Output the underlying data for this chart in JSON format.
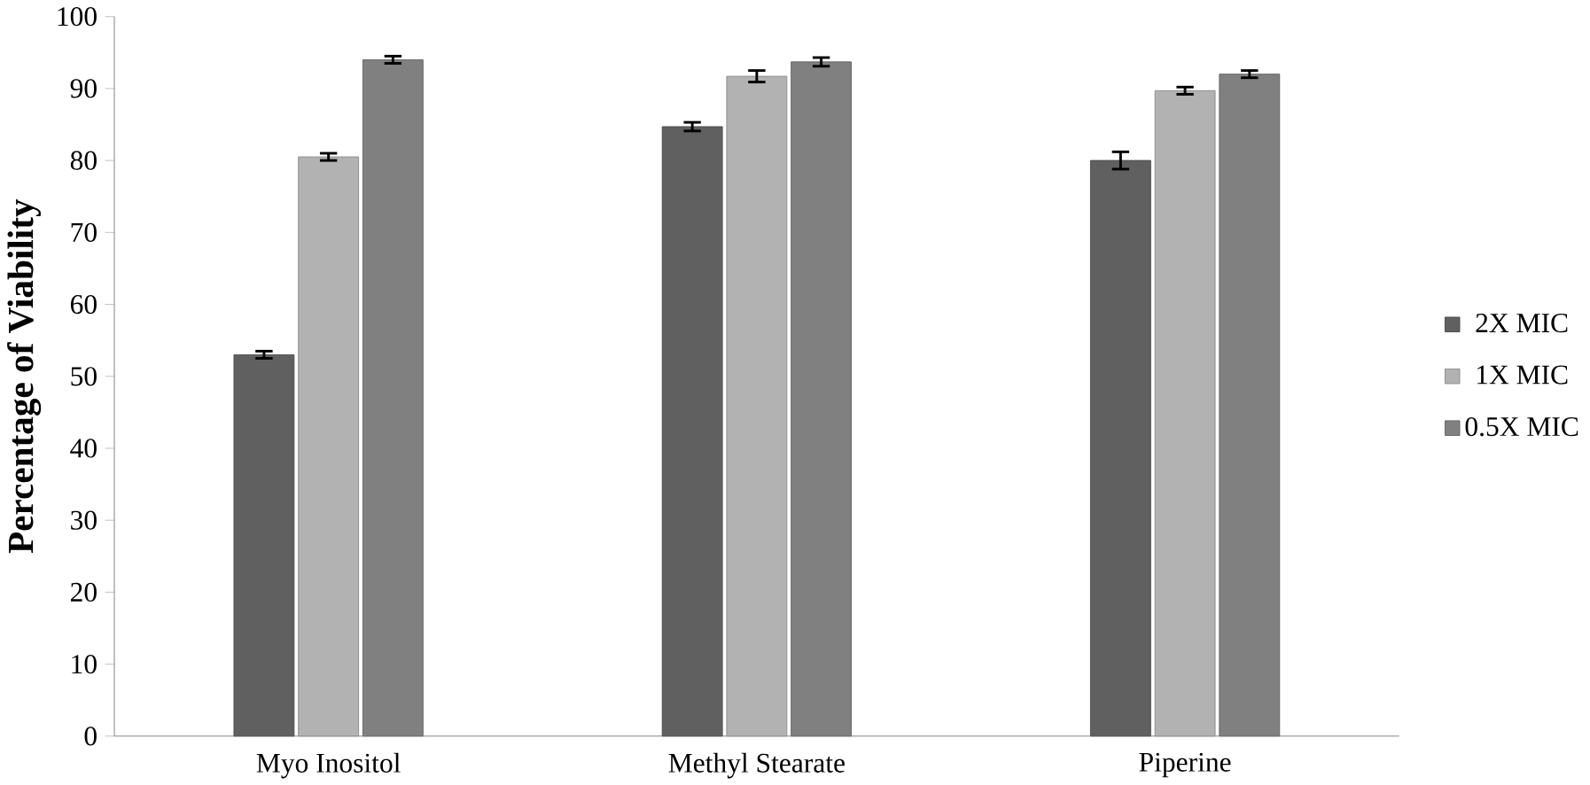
{
  "chart_data": {
    "type": "bar",
    "ylabel": "Percentage of Viability",
    "categories": [
      "Myo Inositol",
      "Methyl Stearate",
      "Piperine"
    ],
    "series": [
      {
        "name": "2X MIC",
        "color": "#606060",
        "values": [
          53,
          84.7,
          80
        ],
        "errors": [
          0.5,
          0.6,
          1.2
        ]
      },
      {
        "name": "1X MIC",
        "color": "#b2b2b2",
        "values": [
          80.5,
          91.7,
          89.7
        ],
        "errors": [
          0.5,
          0.8,
          0.5
        ]
      },
      {
        "name": "0.5X MIC",
        "color": "#808080",
        "values": [
          94,
          93.7,
          92
        ],
        "errors": [
          0.5,
          0.6,
          0.5
        ]
      }
    ],
    "ylim": [
      0,
      100
    ],
    "yticks": [
      0,
      10,
      20,
      30,
      40,
      50,
      60,
      70,
      80,
      90,
      100
    ],
    "grid": false,
    "legend": "right"
  }
}
